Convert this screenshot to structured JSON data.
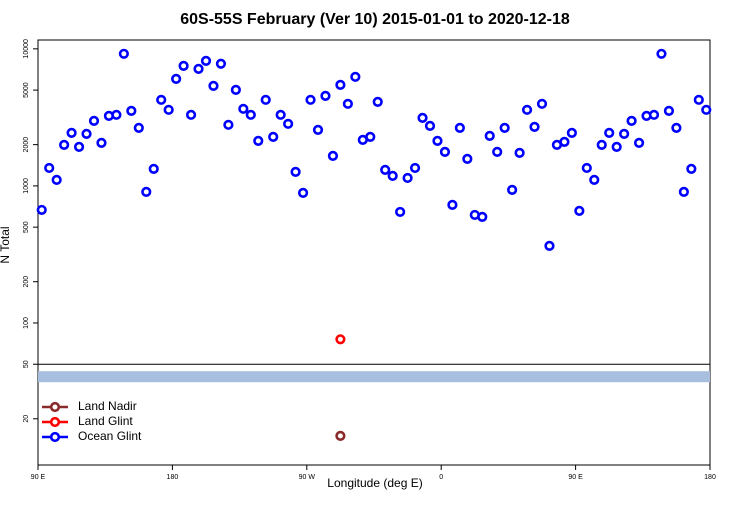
{
  "chart_data": {
    "type": "scatter",
    "title": "60S-55S February (Ver 10)   2015-01-01 to 2020-12-18",
    "x_label": "Longitude (deg E)",
    "y_label": "N Total",
    "ylog": true,
    "xlim": [
      90,
      540
    ],
    "ylim": [
      9.2,
      11600
    ],
    "xticks": [
      {
        "value": 90,
        "label": "90 E"
      },
      180,
      {
        "value": 270,
        "label": "90 W"
      },
      {
        "value": 360,
        "label": "0"
      },
      {
        "value": 450,
        "label": "90 E"
      },
      {
        "value": 540,
        "label": "180"
      }
    ],
    "yticks": [
      20,
      50,
      100,
      200,
      500,
      1000,
      2000,
      5000,
      10000
    ],
    "legend": "bottom-left",
    "series": [
      {
        "name": "Land Nadir",
        "color": "#8b2a2a",
        "x": [
          292.5
        ],
        "values": [
          15
        ]
      },
      {
        "name": "Land Glint",
        "color": "#ff0000",
        "x": [
          292.5
        ],
        "values": [
          76
        ]
      },
      {
        "name": "Ocean Glint",
        "color": "#0000ff",
        "x": [
          92.5,
          97.5,
          102.5,
          107.5,
          112.5,
          117.5,
          122.5,
          127.5,
          132.5,
          137.5,
          142.5,
          147.5,
          152.5,
          157.5,
          162.5,
          167.5,
          172.5,
          177.5,
          182.5,
          187.5,
          192.5,
          197.5,
          202.5,
          207.5,
          212.5,
          217.5,
          222.5,
          227.5,
          232.5,
          237.5,
          242.5,
          247.5,
          252.5,
          257.5,
          262.5,
          267.5,
          272.5,
          277.5,
          282.5,
          287.5,
          292.5,
          297.5,
          302.5,
          307.5,
          312.5,
          317.5,
          322.5,
          327.5,
          332.5,
          337.5,
          342.5,
          347.5,
          352.5,
          357.5,
          362.5,
          367.5,
          372.5,
          377.5,
          382.5,
          387.5,
          392.5,
          397.5,
          402.5,
          407.5,
          412.5,
          417.5,
          422.5,
          427.5,
          432.5,
          437.5,
          442.5,
          447.5,
          452.5,
          457.5,
          462.5,
          467.5,
          472.5,
          477.5,
          482.5,
          487.5,
          492.5,
          497.5,
          502.5,
          507.5,
          512.5,
          517.5,
          522.5,
          527.5,
          532.5,
          537.5
        ],
        "values": [
          668,
          1352,
          1106,
          1991,
          2438,
          1927,
          2397,
          2980,
          2061,
          3243,
          3300,
          9200,
          3526,
          2651,
          904,
          1331,
          4246,
          3590,
          6040,
          7515,
          3300,
          7145,
          8170,
          5370,
          7780,
          2790,
          5020,
          3650,
          3300,
          2130,
          4246,
          2280,
          3300,
          2837,
          1265,
          889,
          4246,
          2564,
          4540,
          1656,
          5460,
          3970,
          6250,
          2168,
          2280,
          4100,
          1309,
          1183,
          646,
          1143,
          1352,
          3135,
          2742,
          2130,
          1772,
          727,
          2651,
          1575,
          614,
          594,
          2317,
          1772,
          2651,
          935,
          1741,
          3590,
          2697,
          3970,
          365,
          1991,
          2096,
          2438,
          657,
          1352,
          1106,
          1991,
          2438,
          1927,
          2397,
          2980,
          2061,
          3243,
          3300,
          9200,
          3526,
          2651,
          904,
          1331,
          4246,
          3590
        ]
      }
    ]
  }
}
